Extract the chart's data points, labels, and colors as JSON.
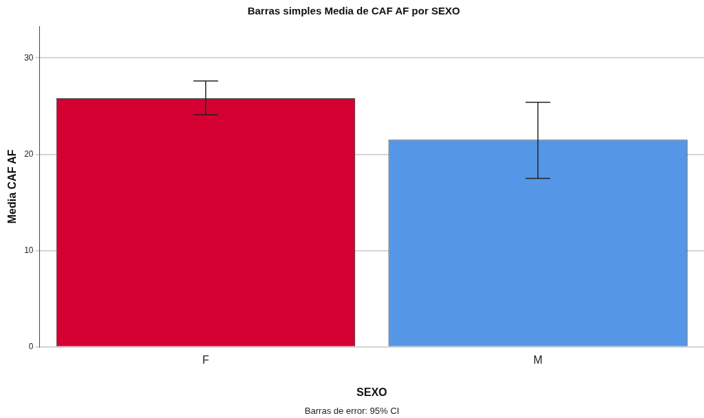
{
  "chart_data": {
    "type": "bar",
    "title": "Barras simples Media de CAF AF por SEXO",
    "xlabel": "SEXO",
    "ylabel": "Media CAF AF",
    "categories": [
      "F",
      "M"
    ],
    "values": [
      25.8,
      21.5
    ],
    "colors": [
      "#d50032",
      "#5596e6"
    ],
    "errors": [
      [
        24.1,
        27.6
      ],
      [
        17.5,
        25.4
      ]
    ],
    "ylim": [
      0,
      33.3
    ],
    "yticks": [
      0,
      10,
      20,
      30
    ],
    "grid": "y",
    "legend": false,
    "annotations": [
      "Barras de error: 95% CI"
    ]
  }
}
